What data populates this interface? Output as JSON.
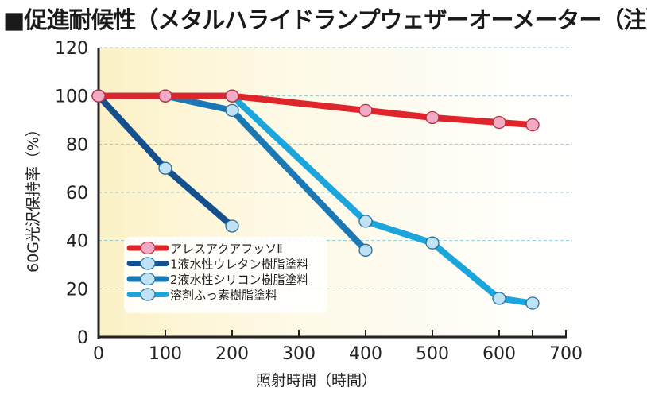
{
  "chart_data": {
    "type": "line",
    "title": "■促進耐候性（メタルハライドランプウェザーオーメーター（注））",
    "xlabel": "照射時間（時間）",
    "ylabel": "60G光沢保持率（%）",
    "xlim": [
      0,
      700
    ],
    "ylim": [
      0,
      120
    ],
    "xticks": [
      0,
      100,
      200,
      300,
      400,
      500,
      600,
      700
    ],
    "xtick_labels": [
      "0",
      "100",
      "200",
      "300",
      "400",
      "500",
      "600",
      "700"
    ],
    "yticks": [
      0,
      20,
      40,
      60,
      80,
      100,
      120
    ],
    "ytick_labels": [
      "0",
      "20",
      "40",
      "60",
      "80",
      "100",
      "120"
    ],
    "grid": "horizontal-dashed",
    "legend_position": "lower-left",
    "series": [
      {
        "name": "溶剤ふっ素樹脂塗料",
        "color": "#1aa6dc",
        "x": [
          0,
          100,
          200,
          400,
          500,
          600,
          650
        ],
        "y": [
          100,
          100,
          100,
          48,
          39,
          16,
          14
        ]
      },
      {
        "name": "2液水性シリコン樹脂塗料",
        "color": "#1a78b4",
        "x": [
          0,
          100,
          200,
          400
        ],
        "y": [
          100,
          100,
          94,
          36
        ]
      },
      {
        "name": "1液水性ウレタン樹脂塗料",
        "color": "#144f8e",
        "x": [
          0,
          100,
          200
        ],
        "y": [
          100,
          70,
          46
        ]
      },
      {
        "name": "アレスアクアフッソⅡ",
        "color": "#e0242c",
        "x": [
          0,
          100,
          200,
          400,
          500,
          600,
          650
        ],
        "y": [
          100,
          100,
          100,
          94,
          91,
          89,
          88
        ]
      }
    ],
    "legend_order": [
      "アレスアクアフッソⅡ",
      "1液水性ウレタン樹脂塗料",
      "2液水性シリコン樹脂塗料",
      "溶剤ふっ素樹脂塗料"
    ]
  },
  "colors": {
    "background_gradient_start": "#fdf3cf",
    "background_gradient_end": "#fffef8",
    "gridline": "#8ec9d8",
    "axis": "#222222",
    "marker_red_fill": "#f4a9c4",
    "marker_blue_fill": "#bfe3f4"
  }
}
